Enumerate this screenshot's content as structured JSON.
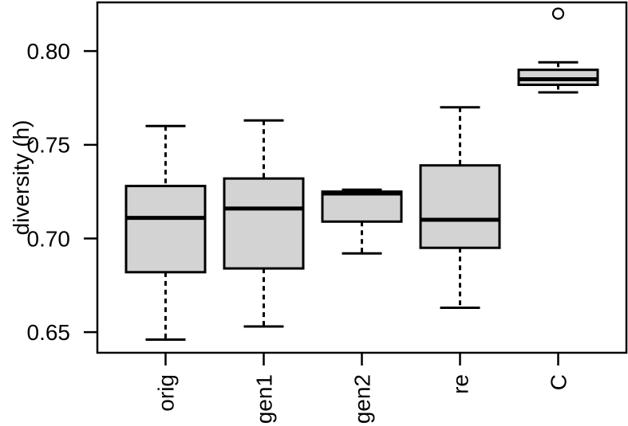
{
  "figure": {
    "kind": "R-style boxplot figure",
    "background": "#ffffff"
  },
  "style": {
    "box_fill": "#d3d3d3",
    "stroke": "#000000",
    "background": "#ffffff",
    "outlier_fill": "#ffffff"
  },
  "chart_data": {
    "type": "boxplot",
    "title": "",
    "xlabel": "",
    "ylabel": "diversity (h)",
    "categories": [
      "orig",
      "gen1",
      "gen2",
      "re",
      "C"
    ],
    "y_ticks": [
      0.65,
      0.7,
      0.75,
      0.8
    ],
    "y_tick_labels": [
      "0.65",
      "0.70",
      "0.75",
      "0.80"
    ],
    "ylim": [
      0.639,
      0.826
    ],
    "grid": false,
    "legend": false,
    "x_tick_label_rotation": -90,
    "series": [
      {
        "name": "orig",
        "whisker_low": 0.646,
        "q1": 0.682,
        "median": 0.711,
        "q3": 0.728,
        "whisker_high": 0.76,
        "outliers": []
      },
      {
        "name": "gen1",
        "whisker_low": 0.653,
        "q1": 0.684,
        "median": 0.716,
        "q3": 0.732,
        "whisker_high": 0.763,
        "outliers": []
      },
      {
        "name": "gen2",
        "whisker_low": 0.692,
        "q1": 0.709,
        "median": 0.724,
        "q3": 0.725,
        "whisker_high": 0.726,
        "outliers": []
      },
      {
        "name": "re",
        "whisker_low": 0.663,
        "q1": 0.695,
        "median": 0.71,
        "q3": 0.739,
        "whisker_high": 0.77,
        "outliers": []
      },
      {
        "name": "C",
        "whisker_low": 0.778,
        "q1": 0.782,
        "median": 0.785,
        "q3": 0.79,
        "whisker_high": 0.794,
        "outliers": [
          0.82
        ]
      }
    ]
  }
}
